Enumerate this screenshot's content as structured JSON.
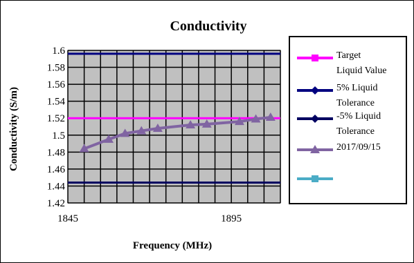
{
  "chart_data": {
    "type": "line",
    "title": "Conductivity",
    "xlabel": "Frequency (MHz)",
    "ylabel": "Conductivity (S/m)",
    "xlim": [
      1845,
      1910
    ],
    "ylim": [
      1.42,
      1.6
    ],
    "yticks": [
      1.42,
      1.44,
      1.46,
      1.48,
      1.5,
      1.52,
      1.54,
      1.56,
      1.58,
      1.6
    ],
    "ytick_labels": [
      "1.42",
      "1.44",
      "1.46",
      "1.48",
      "1.5",
      "1.52",
      "1.54",
      "1.56",
      "1.58",
      "1.6"
    ],
    "xticks": [
      1845,
      1895
    ],
    "xtick_labels": [
      "1845",
      "1895"
    ],
    "grid": true,
    "plot_background": "#c0c0c0",
    "legend_position": "right",
    "series": [
      {
        "name": "Target Liquid Value",
        "legend_lines": [
          "Target",
          "Liquid Value"
        ],
        "color": "#ff00ff",
        "marker": "square",
        "x": [
          1845,
          1910
        ],
        "y": [
          1.52,
          1.52
        ]
      },
      {
        "name": "5% Liquid Tolerance",
        "legend_lines": [
          "5% Liquid",
          "Tolerance"
        ],
        "color": "#000080",
        "marker": "diamond",
        "x": [
          1845,
          1910
        ],
        "y": [
          1.596,
          1.596
        ]
      },
      {
        "name": "-5% Liquid Tolerance",
        "legend_lines": [
          "-5% Liquid",
          "Tolerance"
        ],
        "color": "#000060",
        "marker": "diamond",
        "x": [
          1845,
          1910
        ],
        "y": [
          1.444,
          1.444
        ]
      },
      {
        "name": "2017/09/15",
        "legend_lines": [
          "2017/09/15"
        ],
        "color": "#8064a2",
        "marker": "triangle",
        "x": [
          1850,
          1857.5,
          1862.5,
          1867.5,
          1872.5,
          1882.5,
          1887.5,
          1897.5,
          1902.5,
          1907
        ],
        "y": [
          1.484,
          1.495,
          1.502,
          1.505,
          1.508,
          1.512,
          1.513,
          1.516,
          1.519,
          1.521
        ]
      },
      {
        "name": "",
        "legend_lines": [
          ""
        ],
        "color": "#4bacc6",
        "marker": "square",
        "x": [],
        "y": []
      }
    ]
  }
}
